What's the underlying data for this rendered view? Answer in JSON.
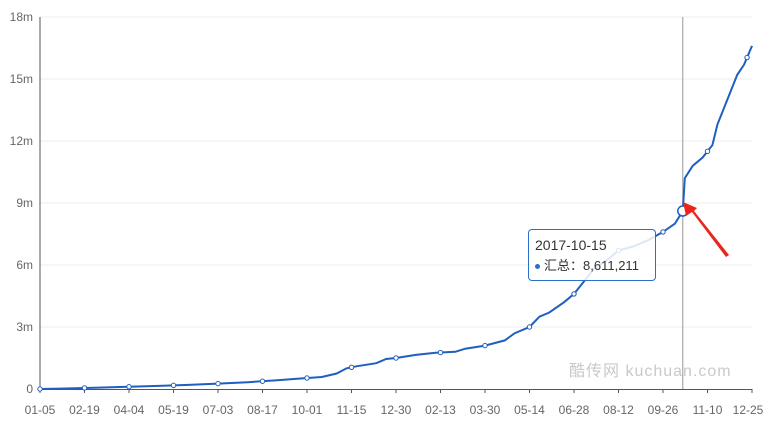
{
  "colors": {
    "line": "#1f5fbf",
    "grid": "#ececec",
    "axis": "#555555",
    "tooltip_border": "#2a6fc9",
    "arrow": "#e8261e"
  },
  "watermark": "酷传网 kuchuan.com",
  "tooltip": {
    "date": "2017-10-15",
    "series_label": "汇总：",
    "value": "8,611,211"
  },
  "chart_data": {
    "type": "line",
    "x_tick_labels": [
      "01-05",
      "02-19",
      "04-04",
      "05-19",
      "07-03",
      "08-17",
      "10-01",
      "11-15",
      "12-30",
      "02-13",
      "03-30",
      "05-14",
      "06-28",
      "08-12",
      "09-26",
      "11-10",
      "12-25"
    ],
    "y_tick_labels": [
      "0",
      "3m",
      "6m",
      "9m",
      "12m",
      "15m",
      "18m"
    ],
    "ylim": [
      0,
      18000000
    ],
    "x_range_days": [
      0,
      720
    ],
    "grid": "horizontal",
    "highlight": {
      "x_day": 650,
      "y": 8611211,
      "label": "2017-10-15"
    },
    "series": [
      {
        "points": [
          [
            0,
            0
          ],
          [
            20,
            20000
          ],
          [
            45,
            50000
          ],
          [
            60,
            70000
          ],
          [
            90,
            110000
          ],
          [
            120,
            150000
          ],
          [
            150,
            200000
          ],
          [
            180,
            260000
          ],
          [
            210,
            330000
          ],
          [
            240,
            420000
          ],
          [
            260,
            500000
          ],
          [
            285,
            580000
          ],
          [
            300,
            750000
          ],
          [
            310,
            1000000
          ],
          [
            320,
            1100000
          ],
          [
            340,
            1250000
          ],
          [
            350,
            1450000
          ],
          [
            360,
            1500000
          ],
          [
            380,
            1650000
          ],
          [
            400,
            1750000
          ],
          [
            420,
            1800000
          ],
          [
            430,
            1950000
          ],
          [
            450,
            2100000
          ],
          [
            470,
            2350000
          ],
          [
            480,
            2700000
          ],
          [
            495,
            3000000
          ],
          [
            505,
            3500000
          ],
          [
            515,
            3700000
          ],
          [
            530,
            4200000
          ],
          [
            540,
            4600000
          ],
          [
            550,
            5200000
          ],
          [
            560,
            5800000
          ],
          [
            575,
            6300000
          ],
          [
            585,
            6700000
          ],
          [
            600,
            6900000
          ],
          [
            615,
            7200000
          ],
          [
            630,
            7600000
          ],
          [
            642,
            8000000
          ],
          [
            650,
            8611211
          ],
          [
            652,
            10200000
          ],
          [
            660,
            10800000
          ],
          [
            670,
            11200000
          ],
          [
            680,
            11800000
          ],
          [
            685,
            12800000
          ],
          [
            695,
            14000000
          ],
          [
            705,
            15200000
          ],
          [
            712,
            15700000
          ],
          [
            720,
            16600000
          ]
        ],
        "markers_at_day": [
          0,
          45,
          90,
          135,
          180,
          225,
          270,
          315,
          360,
          405,
          450,
          495,
          540,
          585,
          630,
          675,
          715
        ]
      }
    ]
  }
}
